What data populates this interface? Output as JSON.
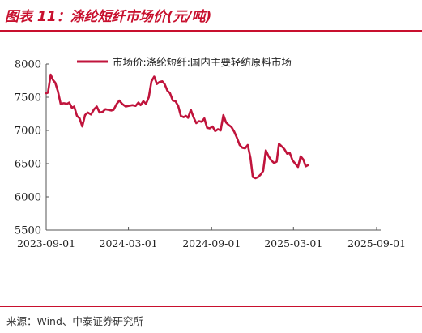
{
  "header": {
    "title": "图表 11：涤纶短纤市场价(元/吨)"
  },
  "footer": {
    "source": "来源：Wind、中泰证券研究所"
  },
  "colors": {
    "accent": "#c8102e",
    "series": "#c0143c"
  },
  "chart_data": {
    "type": "line",
    "title": "",
    "xlabel": "",
    "ylabel": "",
    "ylim": [
      5500,
      8000
    ],
    "yticks": [
      5500,
      6000,
      6500,
      7000,
      7500,
      8000
    ],
    "xticks": [
      "2023-09-01",
      "2024-03-01",
      "2024-09-01",
      "2025-03-01",
      "2025-09-01"
    ],
    "xlim": [
      "2023-09-01",
      "2025-09-10"
    ],
    "grid": false,
    "legend_position": "top",
    "series": [
      {
        "name": "市场价:涤纶短纤:国内主要轻纺原料市场",
        "points": [
          [
            "2023-09-01",
            7560
          ],
          [
            "2023-09-05",
            7570
          ],
          [
            "2023-09-11",
            7840
          ],
          [
            "2023-09-16",
            7760
          ],
          [
            "2023-09-21",
            7720
          ],
          [
            "2023-09-27",
            7590
          ],
          [
            "2023-10-03",
            7400
          ],
          [
            "2023-10-10",
            7410
          ],
          [
            "2023-10-17",
            7400
          ],
          [
            "2023-10-22",
            7420
          ],
          [
            "2023-10-28",
            7340
          ],
          [
            "2023-11-02",
            7360
          ],
          [
            "2023-11-08",
            7220
          ],
          [
            "2023-11-14",
            7180
          ],
          [
            "2023-11-20",
            7060
          ],
          [
            "2023-11-26",
            7230
          ],
          [
            "2023-12-02",
            7270
          ],
          [
            "2023-12-09",
            7240
          ],
          [
            "2023-12-16",
            7320
          ],
          [
            "2023-12-22",
            7360
          ],
          [
            "2023-12-28",
            7270
          ],
          [
            "2024-01-04",
            7280
          ],
          [
            "2024-01-10",
            7320
          ],
          [
            "2024-01-17",
            7310
          ],
          [
            "2024-01-23",
            7300
          ],
          [
            "2024-01-28",
            7310
          ],
          [
            "2024-02-04",
            7400
          ],
          [
            "2024-02-10",
            7450
          ],
          [
            "2024-02-16",
            7400
          ],
          [
            "2024-02-24",
            7360
          ],
          [
            "2024-03-01",
            7370
          ],
          [
            "2024-03-10",
            7380
          ],
          [
            "2024-03-17",
            7370
          ],
          [
            "2024-03-23",
            7420
          ],
          [
            "2024-03-28",
            7380
          ],
          [
            "2024-04-03",
            7440
          ],
          [
            "2024-04-09",
            7400
          ],
          [
            "2024-04-15",
            7500
          ],
          [
            "2024-04-21",
            7740
          ],
          [
            "2024-04-27",
            7810
          ],
          [
            "2024-05-03",
            7700
          ],
          [
            "2024-05-09",
            7730
          ],
          [
            "2024-05-15",
            7740
          ],
          [
            "2024-05-20",
            7700
          ],
          [
            "2024-05-26",
            7600
          ],
          [
            "2024-06-01",
            7560
          ],
          [
            "2024-06-07",
            7450
          ],
          [
            "2024-06-13",
            7440
          ],
          [
            "2024-06-19",
            7370
          ],
          [
            "2024-06-25",
            7220
          ],
          [
            "2024-07-01",
            7200
          ],
          [
            "2024-07-06",
            7220
          ],
          [
            "2024-07-11",
            7190
          ],
          [
            "2024-07-17",
            7310
          ],
          [
            "2024-07-23",
            7200
          ],
          [
            "2024-07-29",
            7110
          ],
          [
            "2024-08-04",
            7140
          ],
          [
            "2024-08-10",
            7130
          ],
          [
            "2024-08-16",
            7180
          ],
          [
            "2024-08-22",
            7040
          ],
          [
            "2024-08-28",
            7030
          ],
          [
            "2024-09-03",
            7060
          ],
          [
            "2024-09-09",
            6990
          ],
          [
            "2024-09-15",
            7020
          ],
          [
            "2024-09-21",
            7000
          ],
          [
            "2024-09-27",
            7230
          ],
          [
            "2024-10-03",
            7120
          ],
          [
            "2024-10-09",
            7080
          ],
          [
            "2024-10-15",
            7050
          ],
          [
            "2024-10-21",
            6980
          ],
          [
            "2024-10-27",
            6890
          ],
          [
            "2024-11-02",
            6780
          ],
          [
            "2024-11-08",
            6740
          ],
          [
            "2024-11-14",
            6730
          ],
          [
            "2024-11-20",
            6780
          ],
          [
            "2024-11-26",
            6580
          ],
          [
            "2024-12-01",
            6300
          ],
          [
            "2024-12-07",
            6280
          ],
          [
            "2024-12-13",
            6300
          ],
          [
            "2024-12-19",
            6340
          ],
          [
            "2024-12-24",
            6390
          ],
          [
            "2024-12-30",
            6700
          ],
          [
            "2025-01-05",
            6610
          ],
          [
            "2025-01-11",
            6550
          ],
          [
            "2025-01-17",
            6510
          ],
          [
            "2025-01-23",
            6530
          ],
          [
            "2025-01-28",
            6800
          ],
          [
            "2025-02-03",
            6760
          ],
          [
            "2025-02-09",
            6720
          ],
          [
            "2025-02-15",
            6650
          ],
          [
            "2025-02-21",
            6660
          ],
          [
            "2025-02-27",
            6550
          ],
          [
            "2025-03-05",
            6500
          ],
          [
            "2025-03-11",
            6450
          ],
          [
            "2025-03-17",
            6610
          ],
          [
            "2025-03-23",
            6560
          ],
          [
            "2025-03-28",
            6460
          ],
          [
            "2025-04-03",
            6480
          ]
        ]
      }
    ]
  }
}
